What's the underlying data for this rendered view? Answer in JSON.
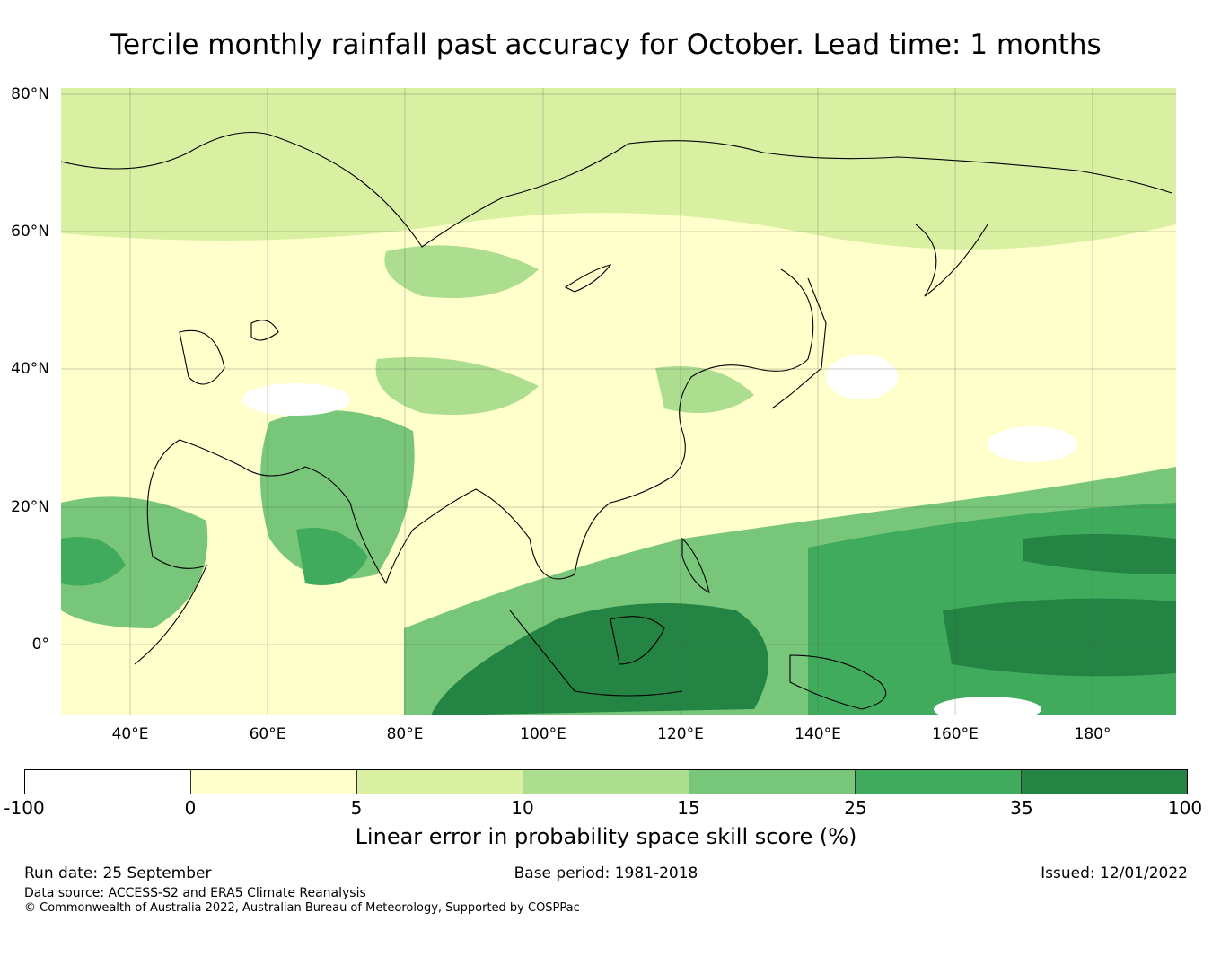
{
  "title": "Tercile monthly rainfall past accuracy for October. Lead time: 1 months",
  "map": {
    "region": "Asia / Western Pacific",
    "lat_labels": [
      "80°N",
      "60°N",
      "40°N",
      "20°N",
      "0°"
    ],
    "lon_labels": [
      "40°E",
      "60°E",
      "80°E",
      "100°E",
      "120°E",
      "140°E",
      "160°E",
      "180°"
    ],
    "extent": {
      "lon_min": 30,
      "lon_max": 192,
      "lat_min": -10,
      "lat_max": 81
    }
  },
  "colorbar": {
    "label": "Linear error in probability space skill score (%)",
    "ticks": [
      "-100",
      "0",
      "5",
      "10",
      "15",
      "25",
      "35",
      "100"
    ],
    "colors": [
      "#ffffff",
      "#ffffcc",
      "#d9f0a3",
      "#addd8e",
      "#78c679",
      "#41ab5d",
      "#238443"
    ]
  },
  "footer": {
    "run_date": "Run date: 25 September",
    "base_period": "Base period: 1981-2018",
    "issued": "Issued: 12/01/2022",
    "data_source": "Data source: ACCESS-S2 and ERA5 Climate Reanalysis",
    "copyright": "© Commonwealth of Australia 2022, Australian Bureau of Meteorology, Supported by COSPPac"
  }
}
